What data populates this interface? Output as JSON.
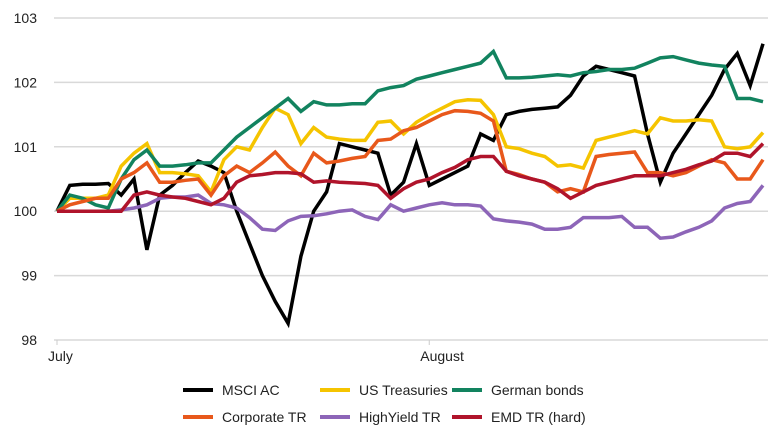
{
  "chart_data": {
    "type": "line",
    "title": "",
    "xlabel": "",
    "ylabel": "",
    "ylim": [
      98,
      103
    ],
    "yticks": [
      "98",
      "99",
      "100",
      "101",
      "102",
      "103"
    ],
    "xticks": [
      {
        "label": "July",
        "x": 0
      },
      {
        "label": "August",
        "x": 29
      }
    ],
    "grid": "horizontal",
    "legend_position": "bottom",
    "series": [
      {
        "name": "MSCI AC",
        "color": "#000000",
        "values": [
          100,
          100.4,
          100.42,
          100.42,
          100.43,
          100.25,
          100.5,
          99.4,
          100.25,
          100.4,
          100.6,
          100.78,
          100.7,
          100.6,
          100.0,
          99.5,
          99.0,
          98.6,
          98.26,
          99.3,
          100.0,
          100.3,
          101.05,
          101.0,
          100.95,
          100.9,
          100.25,
          100.45,
          101.05,
          100.4,
          100.5,
          100.6,
          100.7,
          101.2,
          101.1,
          101.5,
          101.55,
          101.58,
          101.6,
          101.62,
          101.8,
          102.1,
          102.25,
          102.2,
          102.15,
          102.1,
          101.2,
          100.45,
          100.9,
          101.2,
          101.5,
          101.8,
          102.2,
          102.45,
          101.95,
          102.6
        ]
      },
      {
        "name": "US Treasuries",
        "color": "#f5c400",
        "values": [
          100,
          100.2,
          100.2,
          100.2,
          100.25,
          100.7,
          100.9,
          101.05,
          100.6,
          100.6,
          100.58,
          100.55,
          100.3,
          100.8,
          101.0,
          100.95,
          101.3,
          101.6,
          101.5,
          101.05,
          101.3,
          101.15,
          101.12,
          101.1,
          101.1,
          101.38,
          101.4,
          101.2,
          101.38,
          101.5,
          101.6,
          101.7,
          101.73,
          101.72,
          101.5,
          101.0,
          100.97,
          100.9,
          100.85,
          100.7,
          100.72,
          100.67,
          101.1,
          101.15,
          101.2,
          101.25,
          101.2,
          101.45,
          101.4,
          101.4,
          101.42,
          101.4,
          101.0,
          100.97,
          101.0,
          101.22
        ]
      },
      {
        "name": "German bonds",
        "color": "#12835f",
        "values": [
          100,
          100.25,
          100.2,
          100.1,
          100.05,
          100.5,
          100.8,
          100.95,
          100.7,
          100.7,
          100.72,
          100.75,
          100.75,
          100.95,
          101.15,
          101.3,
          101.45,
          101.6,
          101.75,
          101.55,
          101.7,
          101.65,
          101.65,
          101.67,
          101.67,
          101.87,
          101.92,
          101.95,
          102.05,
          102.1,
          102.15,
          102.2,
          102.25,
          102.3,
          102.48,
          102.07,
          102.07,
          102.08,
          102.1,
          102.12,
          102.1,
          102.15,
          102.17,
          102.2,
          102.2,
          102.22,
          102.3,
          102.38,
          102.4,
          102.35,
          102.3,
          102.27,
          102.25,
          101.75,
          101.75,
          101.7
        ]
      },
      {
        "name": "Corporate TR",
        "color": "#e8581b",
        "values": [
          100,
          100.1,
          100.15,
          100.2,
          100.2,
          100.5,
          100.6,
          100.75,
          100.45,
          100.45,
          100.48,
          100.5,
          100.25,
          100.55,
          100.7,
          100.6,
          100.75,
          100.92,
          100.7,
          100.55,
          100.9,
          100.75,
          100.78,
          100.82,
          100.85,
          101.1,
          101.12,
          101.25,
          101.3,
          101.4,
          101.5,
          101.56,
          101.55,
          101.52,
          101.4,
          100.62,
          100.57,
          100.5,
          100.45,
          100.3,
          100.35,
          100.3,
          100.85,
          100.88,
          100.9,
          100.92,
          100.6,
          100.6,
          100.55,
          100.6,
          100.7,
          100.8,
          100.75,
          100.5,
          100.5,
          100.8
        ]
      },
      {
        "name": "HighYield TR",
        "color": "#8d65b8",
        "values": [
          100,
          100,
          100,
          100,
          100,
          100.02,
          100.05,
          100.1,
          100.2,
          100.22,
          100.22,
          100.25,
          100.12,
          100.1,
          100.05,
          99.9,
          99.72,
          99.7,
          99.85,
          99.92,
          99.93,
          99.96,
          100.0,
          100.02,
          99.92,
          99.87,
          100.1,
          100.0,
          100.05,
          100.1,
          100.13,
          100.1,
          100.1,
          100.08,
          99.88,
          99.85,
          99.83,
          99.8,
          99.72,
          99.72,
          99.75,
          99.9,
          99.9,
          99.9,
          99.92,
          99.75,
          99.75,
          99.58,
          99.6,
          99.68,
          99.75,
          99.85,
          100.05,
          100.12,
          100.15,
          100.4
        ]
      },
      {
        "name": "EMD TR (hard)",
        "color": "#b0142b",
        "values": [
          100,
          100,
          100,
          100,
          100,
          100,
          100.25,
          100.3,
          100.25,
          100.22,
          100.2,
          100.15,
          100.1,
          100.2,
          100.45,
          100.55,
          100.57,
          100.6,
          100.6,
          100.58,
          100.45,
          100.47,
          100.45,
          100.44,
          100.43,
          100.4,
          100.2,
          100.35,
          100.45,
          100.5,
          100.6,
          100.68,
          100.8,
          100.85,
          100.85,
          100.62,
          100.55,
          100.5,
          100.45,
          100.35,
          100.2,
          100.3,
          100.4,
          100.45,
          100.5,
          100.55,
          100.55,
          100.55,
          100.6,
          100.65,
          100.72,
          100.78,
          100.9,
          100.9,
          100.85,
          101.05
        ]
      }
    ]
  }
}
